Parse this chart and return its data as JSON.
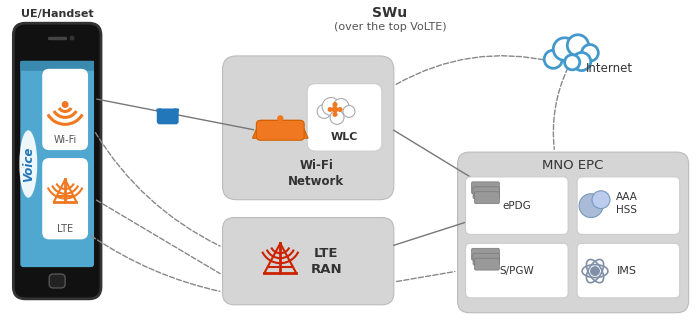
{
  "bg_color": "#ffffff",
  "swu_label": "SWu",
  "swu_sublabel": "(over the top VoLTE)",
  "ue_label": "UE/Handset",
  "internet_label": "Internet",
  "wifi_network_label": "Wi-Fi\nNetwork",
  "wlc_label": "WLC",
  "lte_ran_label": "LTE\nRAN",
  "mno_epc_label": "MNO EPC",
  "epdg_label": "ePDG",
  "aaa_hss_label": "AAA\nHSS",
  "spgw_label": "S/PGW",
  "ims_label": "IMS",
  "voice_label": "Voice",
  "wifi_label": "Wi-Fi",
  "lte_label": "LTE",
  "orange": "#f07820",
  "red": "#cc2200",
  "blue_dark": "#2277bb",
  "cloud_blue": "#4499cc",
  "box_bg": "#d8d8d8",
  "phone_black": "#111111",
  "screen_blue": "#50a8d0"
}
